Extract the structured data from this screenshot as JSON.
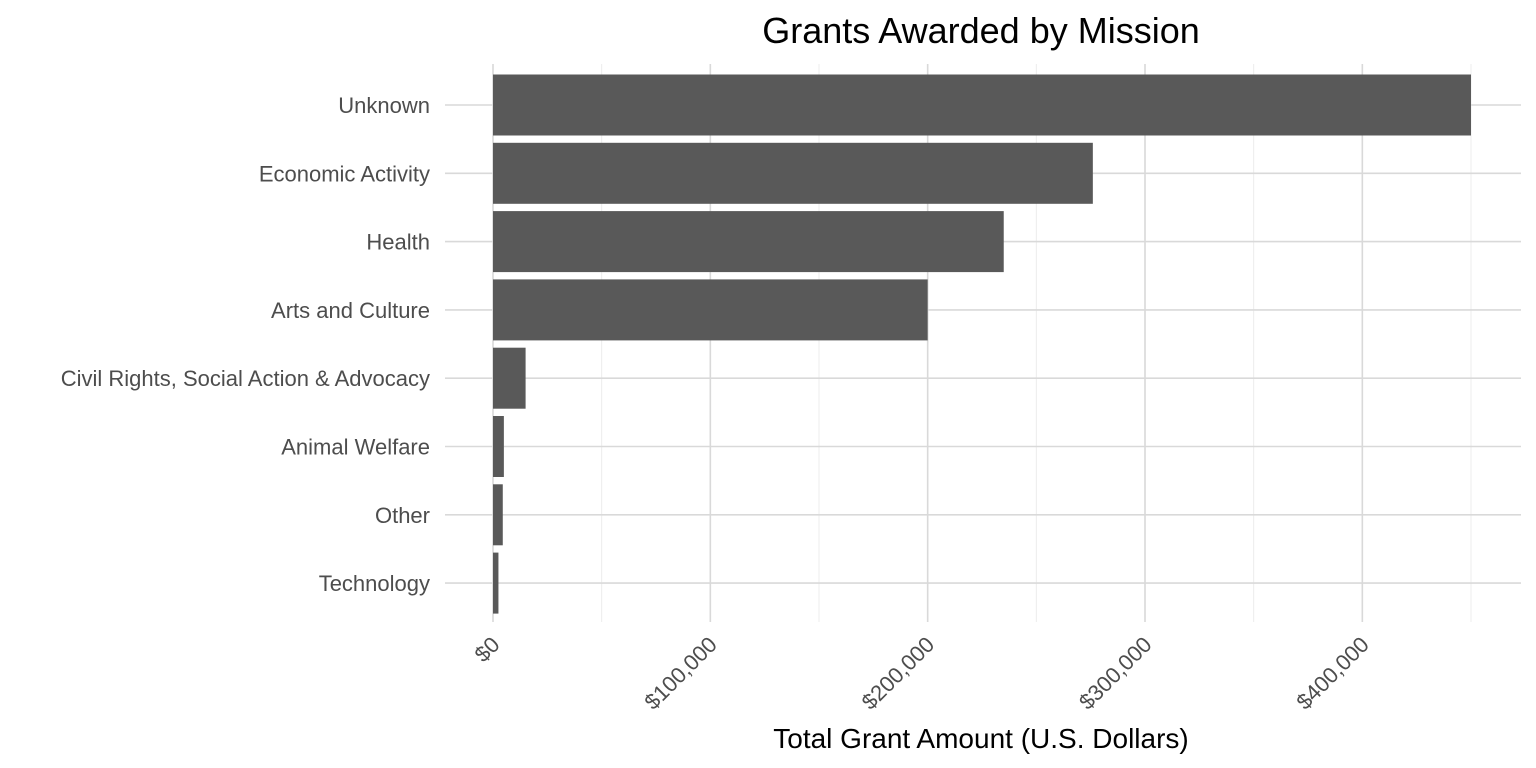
{
  "chart_data": {
    "type": "bar",
    "orientation": "horizontal",
    "title": "Grants Awarded by Mission",
    "xlabel": "Total Grant Amount (U.S. Dollars)",
    "ylabel": "",
    "categories": [
      "Unknown",
      "Economic Activity",
      "Health",
      "Arts and Culture",
      "Civil Rights, Social Action & Advocacy",
      "Animal Welfare",
      "Other",
      "Technology"
    ],
    "values": [
      450000,
      276000,
      235000,
      200000,
      15000,
      5000,
      4500,
      2500
    ],
    "xlim": [
      0,
      470000
    ],
    "x_ticks": [
      0,
      100000,
      200000,
      300000,
      400000
    ],
    "x_tick_labels": [
      "$0",
      "$100,000",
      "$200,000",
      "$300,000",
      "$400,000"
    ],
    "x_tick_label_rotation": -45,
    "grid": true,
    "bar_color": "#595959",
    "grid_color": "#d9d9d9"
  }
}
